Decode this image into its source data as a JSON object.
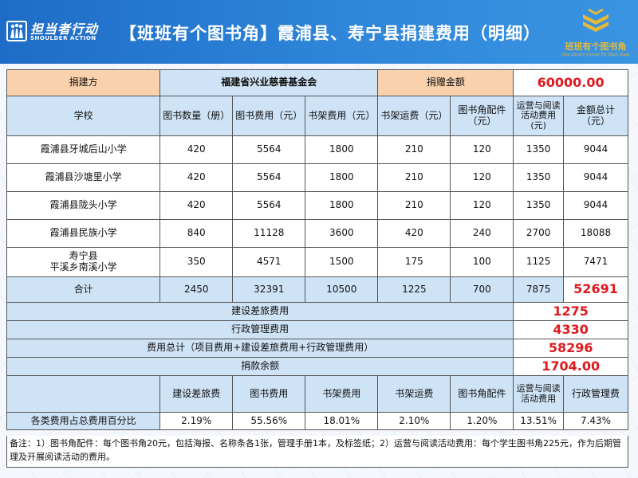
{
  "header": {
    "org_name": "担当者行动",
    "org_sub": "SHOULDER ACTION",
    "title": "【班班有个图书角】霞浦县、寿宁县捐建费用（明细）",
    "right_logo_text": "班班有个图书角",
    "right_logo_sub": "One Library Corner For Each Class"
  },
  "donor_row": {
    "donor_label": "捐建方",
    "donor_name": "福建省兴业慈善基金会",
    "amount_label": "捐赠金额",
    "amount_value": "60000.00"
  },
  "columns": [
    "学校",
    "图书数量（册）",
    "图书费用（元）",
    "书架费用（元）",
    "书架运费（元）",
    "图书角配件（元）",
    "运营与阅读活动费用(元)",
    "金额总计（元）"
  ],
  "rows": [
    {
      "school": "霞浦县牙城后山小学",
      "cells": [
        "420",
        "5564",
        "1800",
        "210",
        "120",
        "1350",
        "9044"
      ]
    },
    {
      "school": "霞浦县沙塘里小学",
      "cells": [
        "420",
        "5564",
        "1800",
        "210",
        "120",
        "1350",
        "9044"
      ]
    },
    {
      "school": "霞浦县陇头小学",
      "cells": [
        "420",
        "5564",
        "1800",
        "210",
        "120",
        "1350",
        "9044"
      ]
    },
    {
      "school": "霞浦县民族小学",
      "cells": [
        "840",
        "11128",
        "3600",
        "420",
        "240",
        "2700",
        "18088"
      ]
    },
    {
      "school": "寿宁县\n平溪乡南溪小学",
      "cells": [
        "350",
        "4571",
        "1500",
        "175",
        "100",
        "1125",
        "7471"
      ]
    }
  ],
  "totals": {
    "label": "合计",
    "cells": [
      "2450",
      "32391",
      "10500",
      "1225",
      "700",
      "7875",
      "52691"
    ]
  },
  "summary": [
    {
      "label": "建设差旅费用",
      "value": "1275"
    },
    {
      "label": "行政管理费用",
      "value": "4330"
    },
    {
      "label": "费用总计（项目费用+建设差旅费用+行政管理费用）",
      "value": "58296"
    },
    {
      "label": "捐款余额",
      "value": "1704.00"
    }
  ],
  "pct_header": [
    "建设差旅费",
    "图书费用",
    "书架费用",
    "书架运费",
    "图书角配件",
    "运营与阅读活动费用",
    "行政管理费"
  ],
  "pct_row": {
    "label": "各类费用占总费用百分比",
    "cells": [
      "2.19%",
      "55.56%",
      "18.01%",
      "2.10%",
      "1.20%",
      "13.51%",
      "7.43%"
    ]
  },
  "note": "备注：1）图书角配件：每个图书角20元，包括海报、名称条各1张，管理手册1本，及标签纸；2）运营与阅读活动费用：每个学生图书角225元，作为后期管理及开展阅读活动的费用。",
  "colors": {
    "header_blue": "#2a7dd3",
    "peach": "#f9d1ad",
    "light_blue": "#cfe3f6",
    "highlight_red": "#e0191e"
  }
}
